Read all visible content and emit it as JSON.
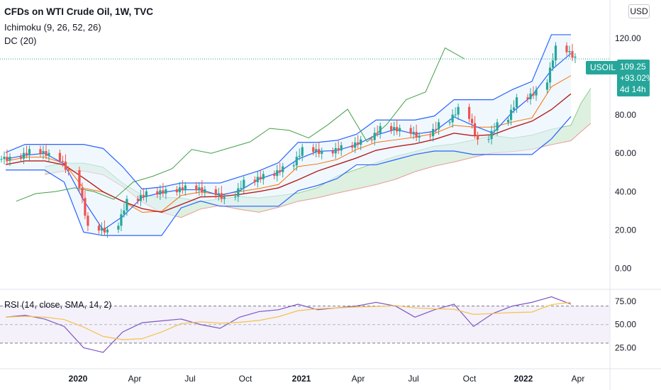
{
  "header": {
    "title": "CFDs on WTI Crude Oil, 1W, TVC",
    "indicator1": "Ichimoku (9, 26, 52, 26)",
    "indicator2": "DC (20)",
    "currency": "USD"
  },
  "price_tag": {
    "symbol": "USOIL",
    "price": "109.25",
    "change": "+93.02%",
    "countdown": "4d 14h"
  },
  "rsi_panel": {
    "label": "RSI (14, close, SMA, 14, 2)"
  },
  "colors": {
    "up": "#26a69a",
    "down": "#ef5350",
    "rsi": "#7e57c2",
    "rsi_ma": "#f5c14b",
    "tenkan": "#2962ff",
    "kijun": "#b71c1c",
    "chikou": "#43a047",
    "donchian": "#2962ff",
    "donchian_basis": "#ff6d00",
    "cloud_bull": "#c8e6c9",
    "cloud_bear": "#ffcdd2"
  },
  "chart_data": [
    {
      "type": "candlestick",
      "title": "CFDs on WTI Crude Oil, 1W, TVC",
      "ylim": [
        -8,
        140
      ],
      "y_ticks": [
        0,
        20,
        40,
        60,
        80,
        120
      ],
      "y_tick_labels": [
        "0.00",
        "20.00",
        "40.00",
        "60.00",
        "80.00",
        "120.00"
      ],
      "x_ticks": [
        "2020",
        "Apr",
        "Jul",
        "Oct",
        "2021",
        "Apr",
        "Jul",
        "Oct",
        "2022",
        "Apr"
      ],
      "last_price": 109.25,
      "price_line": 109.25,
      "grid": false,
      "series_close_approx": [
        {
          "date": "2019-11",
          "close": 57
        },
        {
          "date": "2019-12",
          "close": 61
        },
        {
          "date": "2020-01",
          "close": 59
        },
        {
          "date": "2020-02",
          "close": 50
        },
        {
          "date": "2020-03",
          "close": 21
        },
        {
          "date": "2020-04",
          "close": 19
        },
        {
          "date": "2020-05",
          "close": 35
        },
        {
          "date": "2020-06",
          "close": 39
        },
        {
          "date": "2020-07",
          "close": 40
        },
        {
          "date": "2020-08",
          "close": 42
        },
        {
          "date": "2020-09",
          "close": 40
        },
        {
          "date": "2020-10",
          "close": 36
        },
        {
          "date": "2020-11",
          "close": 45
        },
        {
          "date": "2020-12",
          "close": 48
        },
        {
          "date": "2021-01",
          "close": 52
        },
        {
          "date": "2021-02",
          "close": 62
        },
        {
          "date": "2021-03",
          "close": 60
        },
        {
          "date": "2021-04",
          "close": 63
        },
        {
          "date": "2021-05",
          "close": 66
        },
        {
          "date": "2021-06",
          "close": 73
        },
        {
          "date": "2021-07",
          "close": 72
        },
        {
          "date": "2021-08",
          "close": 68
        },
        {
          "date": "2021-09",
          "close": 75
        },
        {
          "date": "2021-10",
          "close": 83
        },
        {
          "date": "2021-11",
          "close": 66
        },
        {
          "date": "2021-12",
          "close": 75
        },
        {
          "date": "2022-01",
          "close": 88
        },
        {
          "date": "2022-02",
          "close": 92
        },
        {
          "date": "2022-03-peak",
          "close": 115
        },
        {
          "date": "2022-03",
          "close": 109.25
        }
      ]
    },
    {
      "type": "line",
      "title": "RSI (14, close, SMA, 14, 2)",
      "ylim": [
        10,
        85
      ],
      "y_ticks": [
        25,
        50,
        75
      ],
      "y_tick_labels": [
        "25.00",
        "50.00",
        "75.00"
      ],
      "bands": [
        30,
        70
      ],
      "series": [
        {
          "name": "RSI",
          "values_approx": [
            58,
            60,
            56,
            48,
            25,
            20,
            42,
            52,
            54,
            56,
            50,
            46,
            58,
            64,
            66,
            72,
            66,
            68,
            70,
            74,
            70,
            58,
            66,
            72,
            48,
            62,
            70,
            74,
            80,
            72
          ]
        }
      ]
    }
  ]
}
